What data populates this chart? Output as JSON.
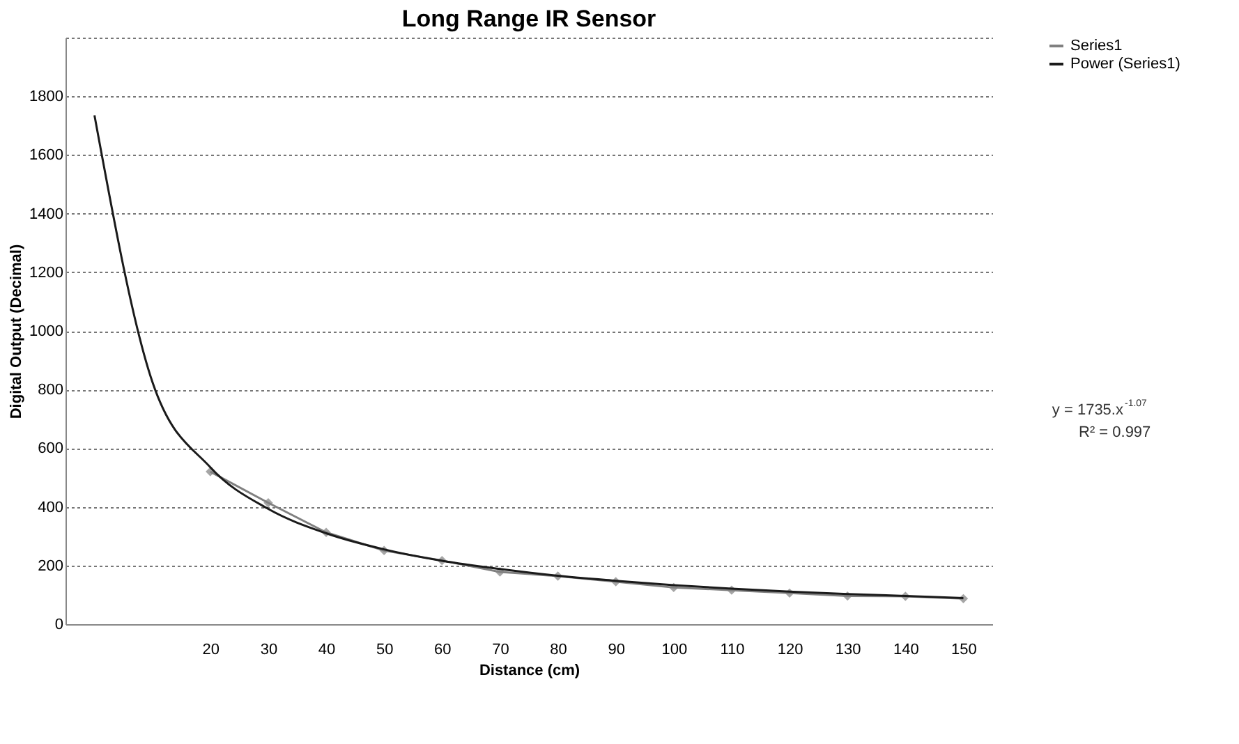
{
  "chart_data": {
    "type": "line",
    "title": "Long Range IR Sensor",
    "xlabel": "Distance (cm)",
    "ylabel": "Digital Output (Decimal)",
    "categories": [
      null,
      null,
      "20",
      "30",
      "40",
      "50",
      "60",
      "70",
      "80",
      "90",
      "100",
      "110",
      "120",
      "130",
      "140",
      "150"
    ],
    "series": [
      {
        "name": "Series1",
        "color": "#808080",
        "marker": "diamond",
        "line_style": "solid",
        "values": [
          null,
          null,
          520,
          414,
          313,
          251,
          217,
          178,
          164,
          145,
          125,
          116,
          106,
          96,
          95,
          87
        ]
      },
      {
        "name": "Power (Series1)",
        "color": "#1a1a1a",
        "marker": "none",
        "line_style": "solid",
        "values": [
          1735,
          826,
          535,
          393,
          310,
          255,
          216,
          188,
          165,
          148,
          133,
          121,
          111,
          103,
          96,
          89
        ]
      }
    ],
    "ylim": [
      0,
      2000
    ],
    "yticks": [
      0,
      200,
      400,
      600,
      800,
      1000,
      1200,
      1400,
      1600,
      1800,
      {
        "value": 2000,
        "label": null
      }
    ],
    "grid": "y",
    "legend": "right",
    "annotations": [
      "y = 1735.x$^{-1.07}$",
      "R² = 0.997"
    ]
  }
}
